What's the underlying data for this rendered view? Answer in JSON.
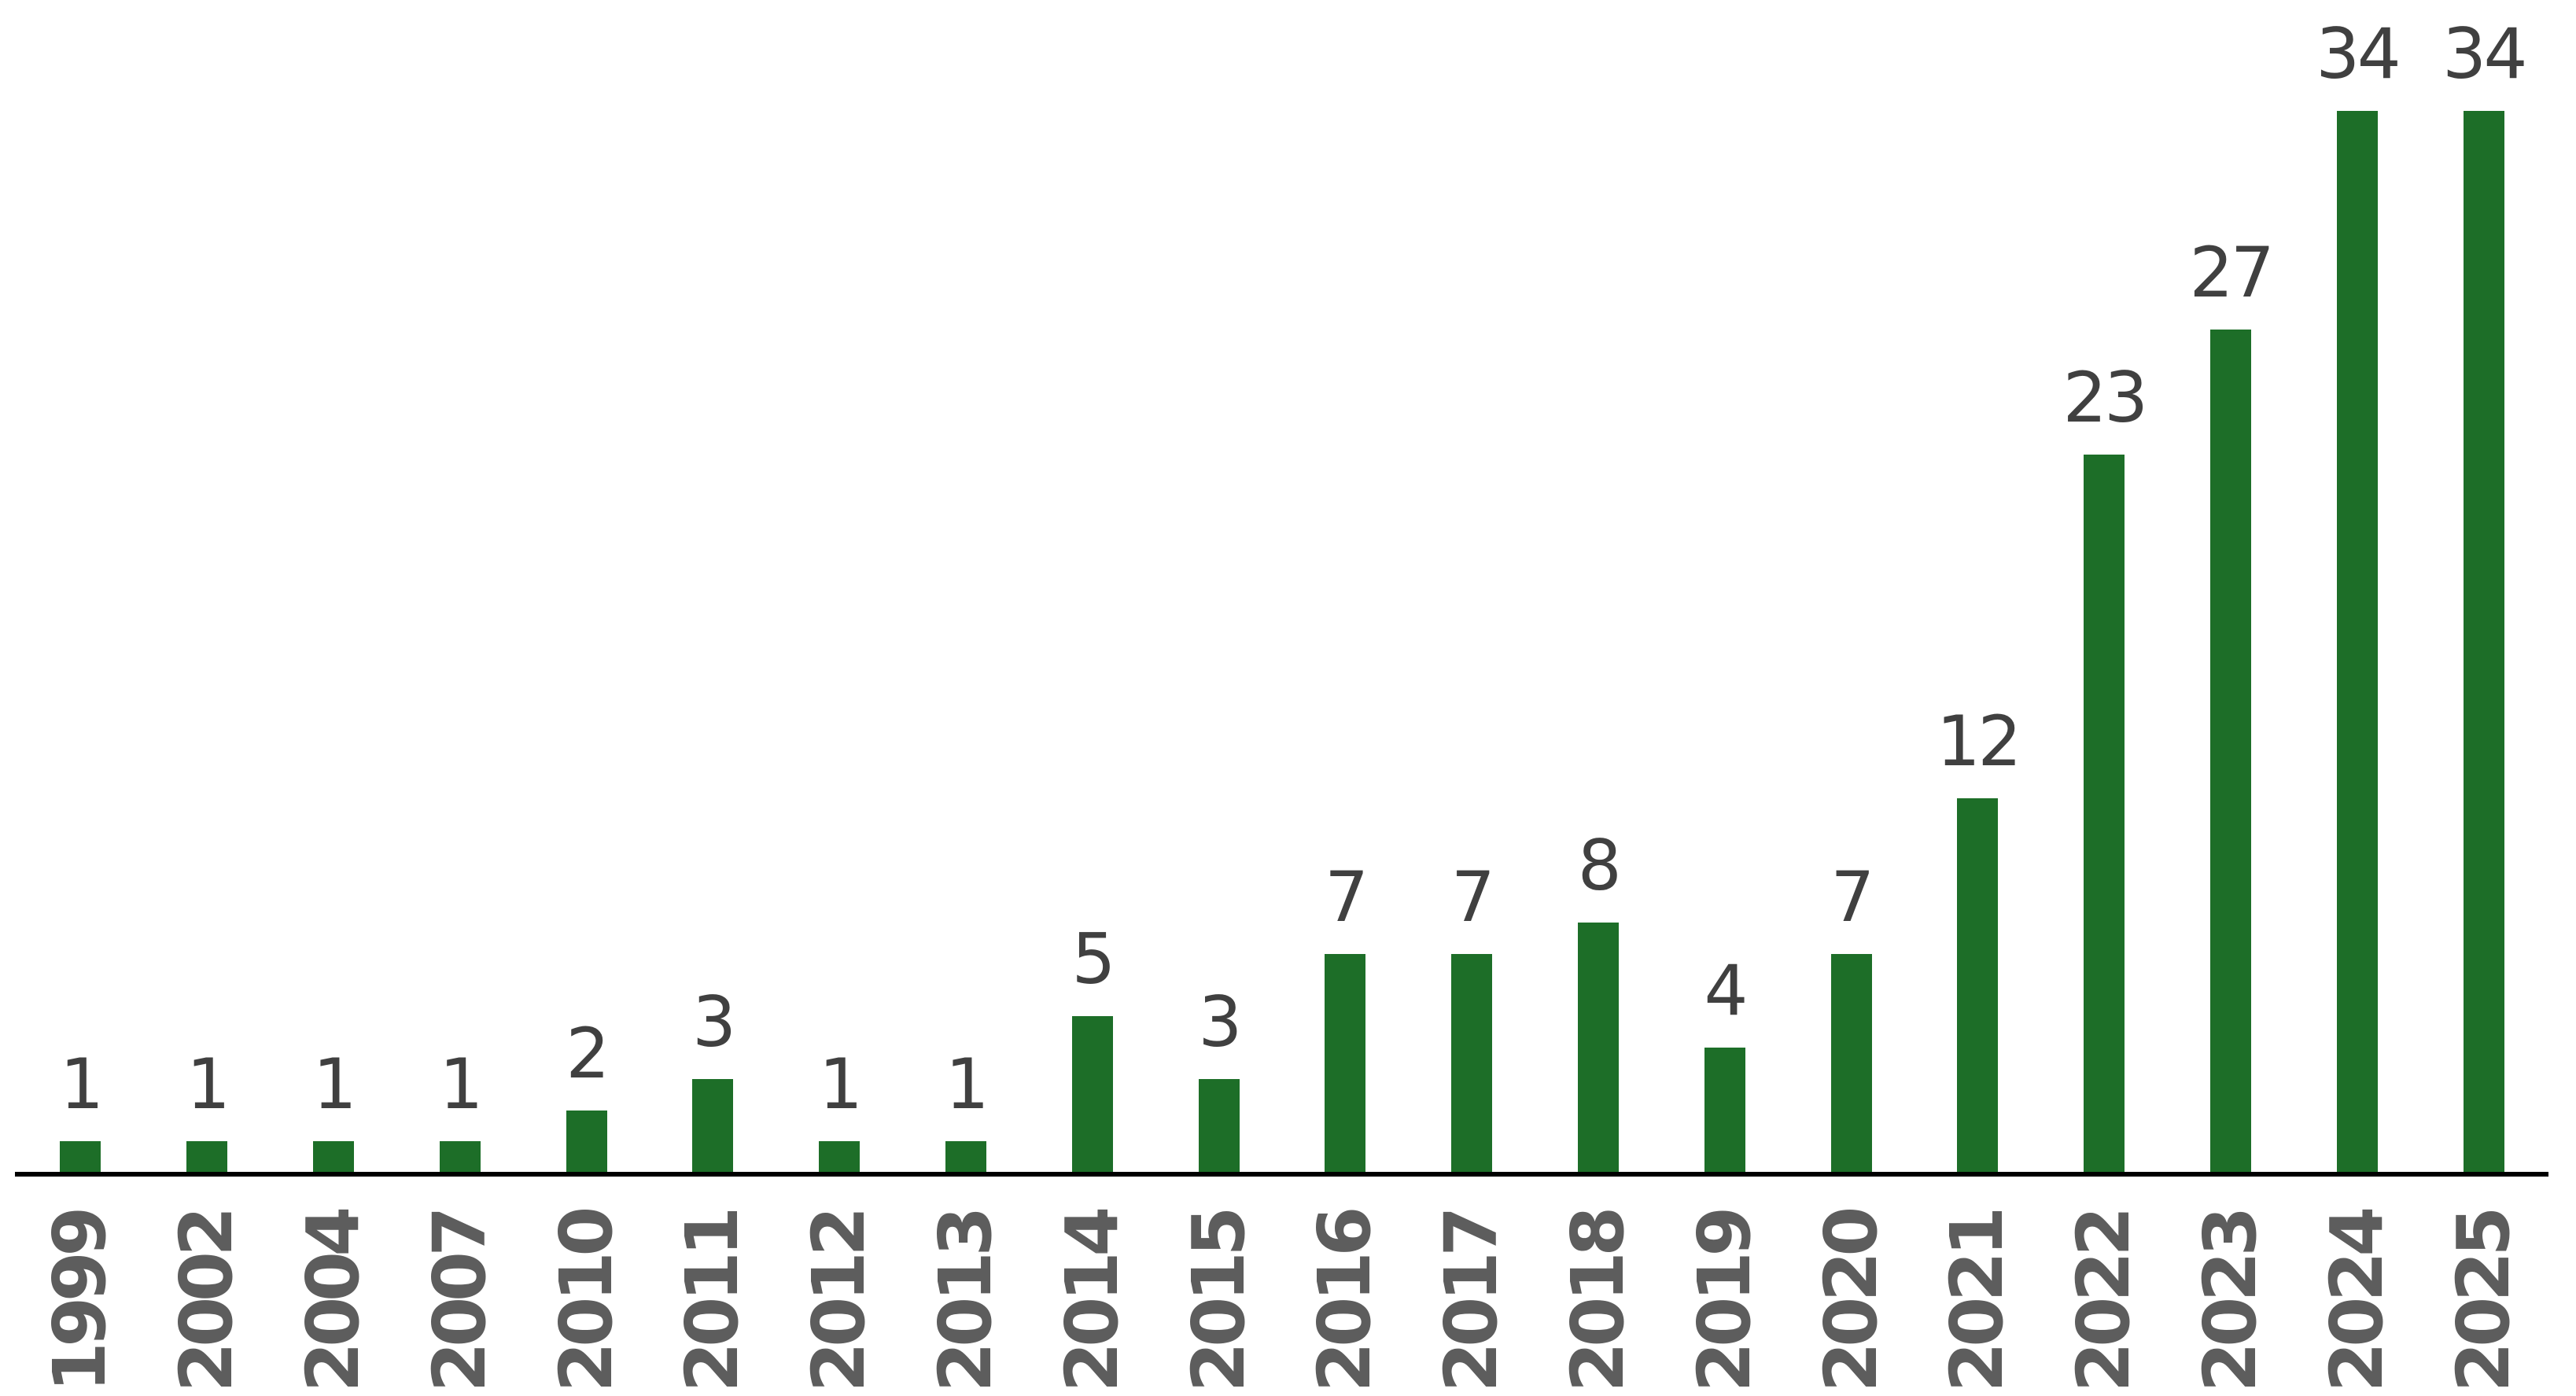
{
  "chart_data": {
    "type": "bar",
    "title": "",
    "xlabel": "",
    "ylabel": "",
    "categories": [
      "1999",
      "2002",
      "2004",
      "2007",
      "2010",
      "2011",
      "2012",
      "2013",
      "2014",
      "2015",
      "2016",
      "2017",
      "2018",
      "2019",
      "2020",
      "2021",
      "2022",
      "2023",
      "2024",
      "2025"
    ],
    "values": [
      1,
      1,
      1,
      1,
      2,
      3,
      1,
      1,
      5,
      3,
      7,
      7,
      8,
      4,
      7,
      12,
      23,
      27,
      34,
      34
    ],
    "value_labels": [
      "1",
      "1",
      "1",
      "1",
      "2",
      "3",
      "1",
      "1",
      "5",
      "3",
      "7",
      "7",
      "8",
      "4",
      "7",
      "12",
      "23",
      "27",
      "34",
      "34"
    ],
    "ylim": [
      0,
      35.5
    ],
    "grid": false,
    "legend": false,
    "orientation": "vertical",
    "value_labels_position": "above-bars",
    "x_tick_rotation_degrees": 90
  },
  "colors": {
    "bar": "#1d6e28",
    "value_label": "#404040",
    "year_label": "#5d5d5d",
    "axis_line": "#000000",
    "background": "#ffffff"
  }
}
